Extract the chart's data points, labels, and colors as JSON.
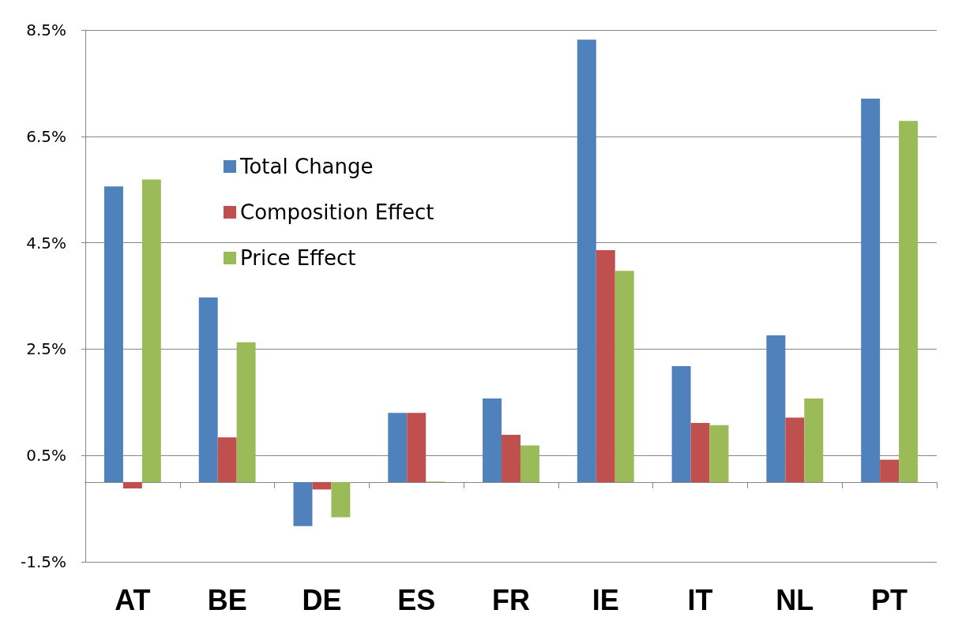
{
  "chart_data": {
    "type": "bar",
    "categories": [
      "AT",
      "BE",
      "DE",
      "ES",
      "FR",
      "IE",
      "IT",
      "NL",
      "PT"
    ],
    "series": [
      {
        "name": "Total Change",
        "color": "#4f81bd",
        "values": [
          5.56,
          3.47,
          -0.83,
          1.3,
          1.57,
          8.32,
          2.18,
          2.76,
          7.21
        ]
      },
      {
        "name": "Composition Effect",
        "color": "#c0504d",
        "values": [
          -0.12,
          0.84,
          -0.14,
          1.3,
          0.89,
          4.36,
          1.11,
          1.21,
          0.42
        ]
      },
      {
        "name": "Price Effect",
        "color": "#9bbb59",
        "values": [
          5.69,
          2.63,
          -0.66,
          0.01,
          0.69,
          3.97,
          1.07,
          1.57,
          6.79
        ]
      }
    ],
    "ylim": [
      -1.5,
      8.5
    ],
    "yticks": [
      {
        "value": -1.5,
        "label": "-1.5%"
      },
      {
        "value": 0.5,
        "label": "0.5%"
      },
      {
        "value": 2.5,
        "label": "2.5%"
      },
      {
        "value": 4.5,
        "label": "4.5%"
      },
      {
        "value": 6.5,
        "label": "6.5%"
      },
      {
        "value": 8.5,
        "label": "8.5%"
      }
    ],
    "grid": "y",
    "legend": "top left"
  }
}
